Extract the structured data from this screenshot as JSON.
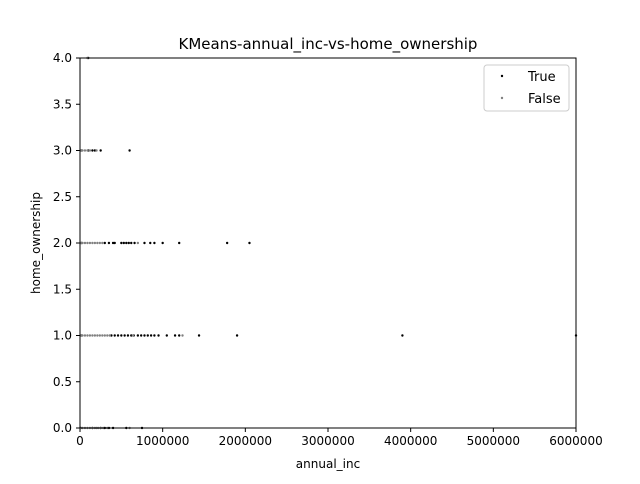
{
  "chart_data": {
    "type": "scatter",
    "title": "KMeans-annual_inc-vs-home_ownership",
    "xlabel": "annual_inc",
    "ylabel": "home_ownership",
    "xlim": [
      0,
      6000000
    ],
    "ylim": [
      0.0,
      4.0
    ],
    "x_ticks": [
      0,
      1000000,
      2000000,
      3000000,
      4000000,
      5000000,
      6000000
    ],
    "x_tick_labels": [
      "0",
      "1000000",
      "2000000",
      "3000000",
      "4000000",
      "5000000",
      "6000000"
    ],
    "y_ticks": [
      0.0,
      0.5,
      1.0,
      1.5,
      2.0,
      2.5,
      3.0,
      3.5,
      4.0
    ],
    "y_tick_labels": [
      "0.0",
      "0.5",
      "1.0",
      "1.5",
      "2.0",
      "2.5",
      "3.0",
      "3.5",
      "4.0"
    ],
    "grid": false,
    "legend_position": "top-right",
    "series": [
      {
        "name": "True",
        "color": "#000000",
        "points": [
          [
            5000,
            0
          ],
          [
            150000,
            0
          ],
          [
            250000,
            0
          ],
          [
            300000,
            0
          ],
          [
            350000,
            0
          ],
          [
            400000,
            0
          ],
          [
            560000,
            0
          ],
          [
            750000,
            0
          ],
          [
            20000,
            1
          ],
          [
            380000,
            1
          ],
          [
            420000,
            1
          ],
          [
            460000,
            1
          ],
          [
            500000,
            1
          ],
          [
            540000,
            1
          ],
          [
            580000,
            1
          ],
          [
            620000,
            1
          ],
          [
            650000,
            1
          ],
          [
            700000,
            1
          ],
          [
            740000,
            1
          ],
          [
            780000,
            1
          ],
          [
            820000,
            1
          ],
          [
            860000,
            1
          ],
          [
            900000,
            1
          ],
          [
            950000,
            1
          ],
          [
            1050000,
            1
          ],
          [
            1150000,
            1
          ],
          [
            1200000,
            1
          ],
          [
            1440000,
            1
          ],
          [
            1900000,
            1
          ],
          [
            3900000,
            1
          ],
          [
            6000000,
            1
          ],
          [
            20000,
            2
          ],
          [
            300000,
            2
          ],
          [
            350000,
            2
          ],
          [
            400000,
            2
          ],
          [
            420000,
            2
          ],
          [
            500000,
            2
          ],
          [
            530000,
            2
          ],
          [
            560000,
            2
          ],
          [
            590000,
            2
          ],
          [
            620000,
            2
          ],
          [
            660000,
            2
          ],
          [
            780000,
            2
          ],
          [
            850000,
            2
          ],
          [
            900000,
            2
          ],
          [
            1000000,
            2
          ],
          [
            1200000,
            2
          ],
          [
            1780000,
            2
          ],
          [
            2050000,
            2
          ],
          [
            20000,
            3
          ],
          [
            100000,
            3
          ],
          [
            150000,
            3
          ],
          [
            180000,
            3
          ],
          [
            250000,
            3
          ],
          [
            600000,
            3
          ],
          [
            100000,
            4
          ]
        ]
      },
      {
        "name": "False",
        "color": "#808080",
        "points": [
          [
            10000,
            0
          ],
          [
            30000,
            0
          ],
          [
            60000,
            0
          ],
          [
            90000,
            0
          ],
          [
            120000,
            0
          ],
          [
            150000,
            0
          ],
          [
            180000,
            0
          ],
          [
            200000,
            0
          ],
          [
            220000,
            0
          ],
          [
            250000,
            0
          ],
          [
            280000,
            0
          ],
          [
            330000,
            0
          ],
          [
            600000,
            0
          ],
          [
            10000,
            1
          ],
          [
            30000,
            1
          ],
          [
            60000,
            1
          ],
          [
            90000,
            1
          ],
          [
            120000,
            1
          ],
          [
            150000,
            1
          ],
          [
            180000,
            1
          ],
          [
            210000,
            1
          ],
          [
            240000,
            1
          ],
          [
            270000,
            1
          ],
          [
            300000,
            1
          ],
          [
            330000,
            1
          ],
          [
            360000,
            1
          ],
          [
            640000,
            1
          ],
          [
            1240000,
            1
          ],
          [
            10000,
            2
          ],
          [
            30000,
            2
          ],
          [
            60000,
            2
          ],
          [
            90000,
            2
          ],
          [
            120000,
            2
          ],
          [
            150000,
            2
          ],
          [
            180000,
            2
          ],
          [
            210000,
            2
          ],
          [
            240000,
            2
          ],
          [
            270000,
            2
          ],
          [
            700000,
            2
          ],
          [
            10000,
            3
          ],
          [
            30000,
            3
          ],
          [
            60000,
            3
          ],
          [
            90000,
            3
          ],
          [
            120000,
            3
          ],
          [
            200000,
            3
          ],
          [
            90000,
            4
          ]
        ]
      }
    ]
  }
}
